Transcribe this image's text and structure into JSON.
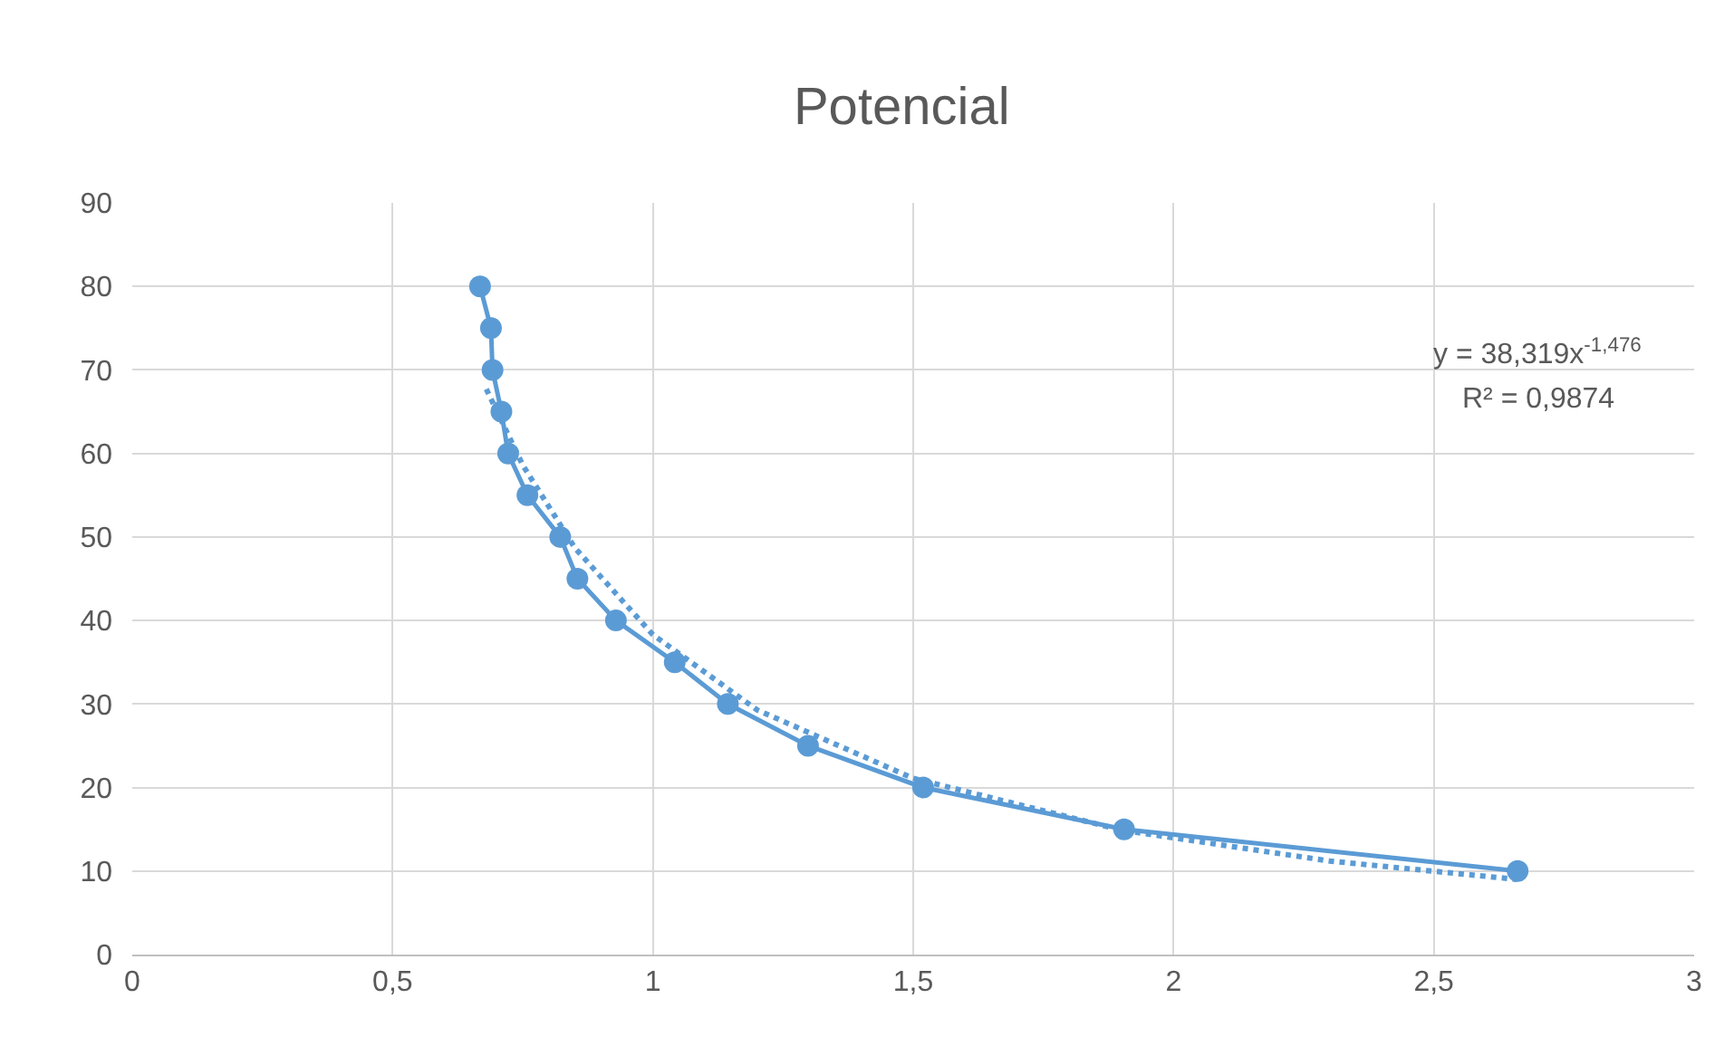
{
  "chart_data": {
    "type": "line",
    "title": "Potencial",
    "x": [
      0.668,
      0.689,
      0.692,
      0.709,
      0.722,
      0.759,
      0.822,
      0.855,
      0.929,
      1.042,
      1.144,
      1.298,
      1.519,
      1.905,
      2.661
    ],
    "series": [
      {
        "color": "#5b9bd5",
        "marker": "circle",
        "line_style": "solid",
        "values": [
          80,
          75,
          70,
          65,
          60,
          55,
          50,
          45,
          40,
          35,
          30,
          25,
          20,
          15,
          10
        ]
      },
      {
        "color": "#5b9bd5",
        "marker": "none",
        "line_style": "dotted",
        "x": [
          0.68,
          0.75,
          0.85,
          1.0,
          1.2,
          1.5,
          1.9,
          2.3,
          2.66
        ],
        "values": [
          67.7,
          58.6,
          48.7,
          38.3,
          29.3,
          21.1,
          14.9,
          11.2,
          9.0
        ]
      }
    ],
    "annotations": [
      "y = 38,319x$^{-1,476}$",
      "R² = 0,9874"
    ],
    "xlim": [
      0,
      3
    ],
    "xticks": [
      0,
      {
        "value": 0.5,
        "label": "0,5"
      },
      1,
      {
        "value": 1.5,
        "label": "1,5"
      },
      2,
      {
        "value": 2.5,
        "label": "2,5"
      },
      3
    ],
    "ylim": [
      0,
      90
    ],
    "yticks": [
      0,
      10,
      20,
      30,
      40,
      50,
      60,
      70,
      80,
      90
    ],
    "grid": true
  }
}
